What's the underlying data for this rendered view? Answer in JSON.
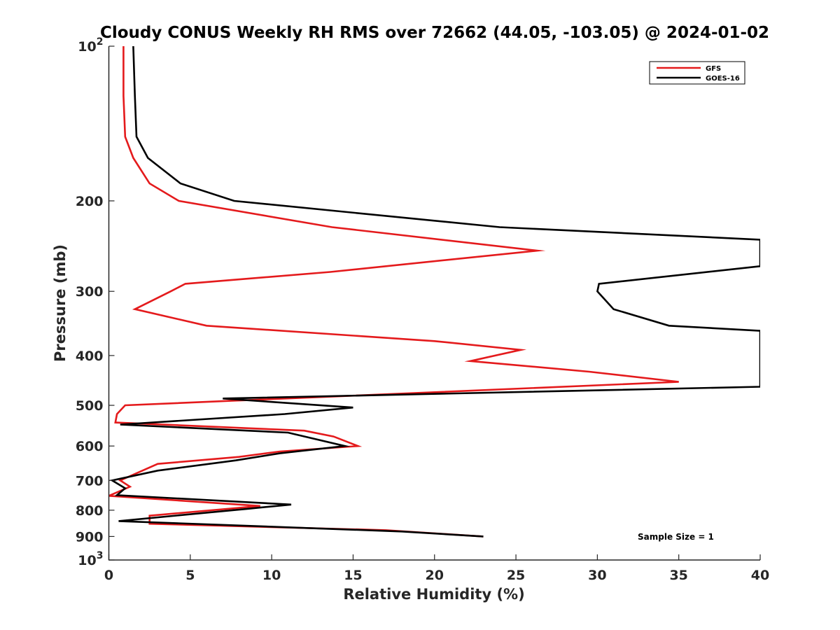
{
  "chart_data": {
    "type": "line",
    "title": "Cloudy CONUS Weekly RH RMS over 72662 (44.05, -103.05) @ 2024-01-02",
    "xlabel": "Relative Humidity (%)",
    "ylabel": "Pressure (mb)",
    "xlim": [
      0,
      40
    ],
    "ylim": [
      100,
      1000
    ],
    "y_scale": "log",
    "y_reversed": true,
    "grid": false,
    "legend_position": "top-right",
    "x_ticks": [
      {
        "value": 0,
        "label": "0"
      },
      {
        "value": 5,
        "label": "5"
      },
      {
        "value": 10,
        "label": "10"
      },
      {
        "value": 15,
        "label": "15"
      },
      {
        "value": 20,
        "label": "20"
      },
      {
        "value": 25,
        "label": "25"
      },
      {
        "value": 30,
        "label": "30"
      },
      {
        "value": 35,
        "label": "35"
      },
      {
        "value": 40,
        "label": "40"
      }
    ],
    "y_ticks": [
      {
        "value": 100,
        "base": "10",
        "exp": "2"
      },
      {
        "value": 200,
        "label": "200"
      },
      {
        "value": 300,
        "label": "300"
      },
      {
        "value": 400,
        "label": "400"
      },
      {
        "value": 500,
        "label": "500"
      },
      {
        "value": 600,
        "label": "600"
      },
      {
        "value": 700,
        "label": "700"
      },
      {
        "value": 800,
        "label": "800"
      },
      {
        "value": 900,
        "label": "900"
      },
      {
        "value": 1000,
        "base": "10",
        "exp": "3"
      }
    ],
    "series": [
      {
        "name": "GFS",
        "color": "#e41a1c",
        "points": [
          [
            0.9,
            100
          ],
          [
            0.9,
            125
          ],
          [
            1.0,
            150
          ],
          [
            1.5,
            165
          ],
          [
            2.5,
            185
          ],
          [
            4.3,
            200
          ],
          [
            13.7,
            225
          ],
          [
            26.3,
            250
          ],
          [
            13.6,
            275
          ],
          [
            4.7,
            290
          ],
          [
            3.8,
            300
          ],
          [
            1.6,
            325
          ],
          [
            6.0,
            350
          ],
          [
            20.0,
            375
          ],
          [
            25.3,
            390
          ],
          [
            22.2,
            410
          ],
          [
            29.5,
            430
          ],
          [
            35.0,
            450
          ],
          [
            7.5,
            490
          ],
          [
            1.0,
            500
          ],
          [
            0.5,
            520
          ],
          [
            0.4,
            540
          ],
          [
            12.0,
            560
          ],
          [
            13.8,
            575
          ],
          [
            15.3,
            600
          ],
          [
            10.5,
            615
          ],
          [
            8.0,
            630
          ],
          [
            3.0,
            650
          ],
          [
            0.7,
            700
          ],
          [
            1.3,
            720
          ],
          [
            0.0,
            750
          ],
          [
            9.3,
            785
          ],
          [
            2.5,
            820
          ],
          [
            2.5,
            850
          ],
          [
            17.0,
            875
          ],
          [
            23.0,
            900
          ]
        ]
      },
      {
        "name": "GOES-16",
        "color": "#000000",
        "points": [
          [
            1.5,
            100
          ],
          [
            1.6,
            125
          ],
          [
            1.7,
            150
          ],
          [
            2.4,
            165
          ],
          [
            4.4,
            185
          ],
          [
            7.7,
            200
          ],
          [
            24.0,
            225
          ],
          [
            40.0,
            238
          ],
          [
            40.0,
            268
          ],
          [
            30.1,
            290
          ],
          [
            30.0,
            300
          ],
          [
            31.0,
            325
          ],
          [
            34.4,
            350
          ],
          [
            40.0,
            358
          ],
          [
            40.0,
            460
          ],
          [
            7.0,
            485
          ],
          [
            15.0,
            505
          ],
          [
            10.8,
            520
          ],
          [
            0.7,
            545
          ],
          [
            11.0,
            565
          ],
          [
            14.5,
            600
          ],
          [
            10.5,
            620
          ],
          [
            7.8,
            640
          ],
          [
            3.0,
            670
          ],
          [
            0.2,
            700
          ],
          [
            1.0,
            725
          ],
          [
            0.5,
            748
          ],
          [
            11.2,
            780
          ],
          [
            8.5,
            795
          ],
          [
            0.6,
            840
          ],
          [
            18.0,
            880
          ],
          [
            23.0,
            900
          ]
        ]
      }
    ],
    "legend": [
      {
        "label": "GFS",
        "color": "#e41a1c"
      },
      {
        "label": "GOES-16",
        "color": "#000000"
      }
    ],
    "annotation": "Sample Size = 1"
  }
}
